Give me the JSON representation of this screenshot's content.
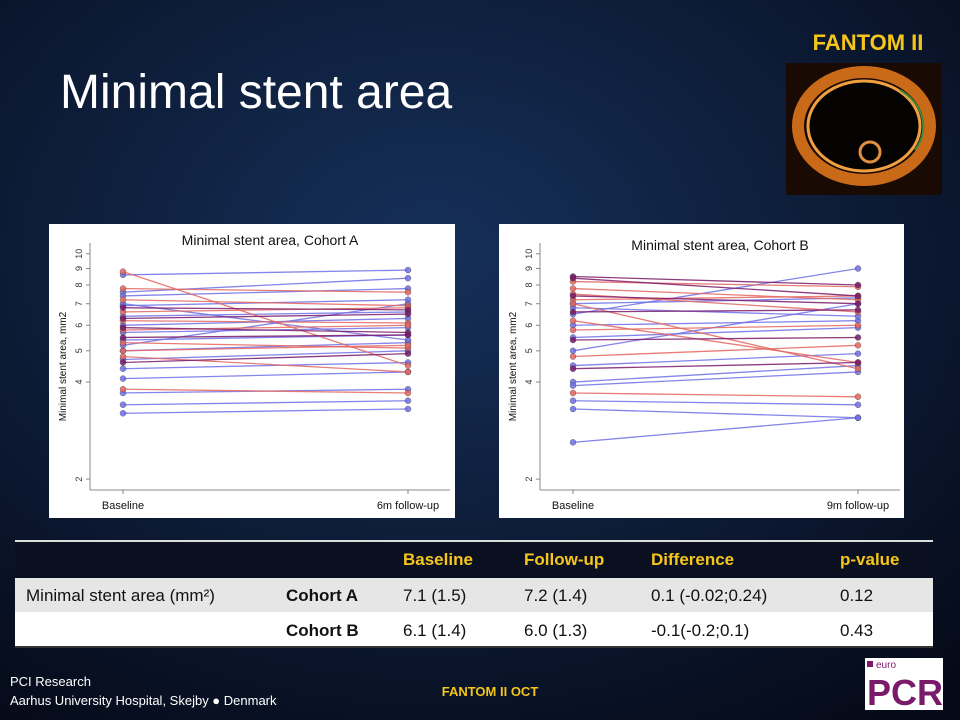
{
  "title": "Minimal stent area",
  "badge": "FANTOM II",
  "chart_data": [
    {
      "type": "line",
      "title": "Minimal stent area, Cohort A",
      "y_label": "Minimal stent area, mm2",
      "categories": [
        "Baseline",
        "6m  follow-up"
      ],
      "log_y": true,
      "ylim": [
        1.85,
        10.8
      ],
      "yticks": [
        2,
        4,
        5,
        6,
        7,
        8,
        9,
        10
      ],
      "series": [
        {
          "color": "#6f6fe6",
          "values": [
            8.6,
            8.9
          ]
        },
        {
          "color": "#6f6fe6",
          "values": [
            7.6,
            8.4
          ]
        },
        {
          "color": "#6f6fe6",
          "values": [
            7.4,
            7.8
          ]
        },
        {
          "color": "#6f6fe6",
          "values": [
            6.9,
            7.2
          ]
        },
        {
          "color": "#6f6fe6",
          "values": [
            6.4,
            6.6
          ]
        },
        {
          "color": "#6f6fe6",
          "values": [
            6.0,
            6.3
          ]
        },
        {
          "color": "#6f6fe6",
          "values": [
            5.7,
            5.9
          ]
        },
        {
          "color": "#6f6fe6",
          "values": [
            5.4,
            5.6
          ]
        },
        {
          "color": "#6f6fe6",
          "values": [
            5.0,
            5.3
          ]
        },
        {
          "color": "#6f6fe6",
          "values": [
            4.7,
            5.0
          ]
        },
        {
          "color": "#6f6fe6",
          "values": [
            4.4,
            4.6
          ]
        },
        {
          "color": "#6f6fe6",
          "values": [
            4.1,
            4.3
          ]
        },
        {
          "color": "#6f6fe6",
          "values": [
            3.7,
            3.8
          ]
        },
        {
          "color": "#6f6fe6",
          "values": [
            3.4,
            3.5
          ]
        },
        {
          "color": "#6f6fe6",
          "values": [
            3.2,
            3.3
          ]
        },
        {
          "color": "#6f6fe6",
          "values": [
            7.0,
            5.4
          ]
        },
        {
          "color": "#6f6fe6",
          "values": [
            5.2,
            7.0
          ]
        },
        {
          "color": "#e4665f",
          "values": [
            8.8,
            4.5
          ]
        },
        {
          "color": "#e4665f",
          "values": [
            7.8,
            7.6
          ]
        },
        {
          "color": "#e4665f",
          "values": [
            7.2,
            6.9
          ]
        },
        {
          "color": "#e4665f",
          "values": [
            6.6,
            6.8
          ]
        },
        {
          "color": "#e4665f",
          "values": [
            6.2,
            6.1
          ]
        },
        {
          "color": "#e4665f",
          "values": [
            5.8,
            6.0
          ]
        },
        {
          "color": "#e4665f",
          "values": [
            5.3,
            5.1
          ]
        },
        {
          "color": "#e4665f",
          "values": [
            5.0,
            5.2
          ]
        },
        {
          "color": "#e4665f",
          "values": [
            4.8,
            4.3
          ]
        },
        {
          "color": "#e4665f",
          "values": [
            3.8,
            3.7
          ]
        },
        {
          "color": "#7a1a6a",
          "values": [
            6.8,
            6.7
          ]
        },
        {
          "color": "#7a1a6a",
          "values": [
            6.3,
            6.5
          ]
        },
        {
          "color": "#7a1a6a",
          "values": [
            5.9,
            5.7
          ]
        },
        {
          "color": "#7a1a6a",
          "values": [
            5.5,
            5.6
          ]
        },
        {
          "color": "#7a1a6a",
          "values": [
            4.6,
            4.9
          ]
        }
      ]
    },
    {
      "type": "line",
      "title": "Minimal stent area, Cohort B",
      "y_label": "Minimal stent area, mm2",
      "categories": [
        "Baseline",
        "9m follow-up"
      ],
      "log_y": true,
      "ylim": [
        1.85,
        10.8
      ],
      "yticks": [
        2,
        4,
        5,
        6,
        7,
        8,
        9,
        10
      ],
      "series": [
        {
          "color": "#6f6fe6",
          "values": [
            6.5,
            9.0
          ]
        },
        {
          "color": "#6f6fe6",
          "values": [
            5.0,
            7.0
          ]
        },
        {
          "color": "#6f6fe6",
          "values": [
            4.0,
            4.5
          ]
        },
        {
          "color": "#6f6fe6",
          "values": [
            3.9,
            4.3
          ]
        },
        {
          "color": "#6f6fe6",
          "values": [
            3.5,
            3.4
          ]
        },
        {
          "color": "#6f6fe6",
          "values": [
            3.3,
            3.1
          ]
        },
        {
          "color": "#6f6fe6",
          "values": [
            2.6,
            3.1
          ]
        },
        {
          "color": "#6f6fe6",
          "values": [
            6.0,
            6.2
          ]
        },
        {
          "color": "#6f6fe6",
          "values": [
            5.5,
            5.9
          ]
        },
        {
          "color": "#6f6fe6",
          "values": [
            4.5,
            4.9
          ]
        },
        {
          "color": "#6f6fe6",
          "values": [
            7.0,
            7.3
          ]
        },
        {
          "color": "#6f6fe6",
          "values": [
            6.8,
            6.4
          ]
        },
        {
          "color": "#e4665f",
          "values": [
            8.2,
            7.9
          ]
        },
        {
          "color": "#e4665f",
          "values": [
            7.8,
            7.2
          ]
        },
        {
          "color": "#e4665f",
          "values": [
            7.5,
            6.6
          ]
        },
        {
          "color": "#e4665f",
          "values": [
            7.2,
            7.4
          ]
        },
        {
          "color": "#e4665f",
          "values": [
            6.2,
            4.6
          ]
        },
        {
          "color": "#e4665f",
          "values": [
            5.8,
            6.0
          ]
        },
        {
          "color": "#e4665f",
          "values": [
            4.8,
            5.2
          ]
        },
        {
          "color": "#e4665f",
          "values": [
            3.7,
            3.6
          ]
        },
        {
          "color": "#e4665f",
          "values": [
            7.0,
            4.4
          ]
        },
        {
          "color": "#7a1a6a",
          "values": [
            8.5,
            8.0
          ]
        },
        {
          "color": "#7a1a6a",
          "values": [
            7.4,
            7.0
          ]
        },
        {
          "color": "#7a1a6a",
          "values": [
            6.6,
            6.7
          ]
        },
        {
          "color": "#7a1a6a",
          "values": [
            5.4,
            5.5
          ]
        },
        {
          "color": "#7a1a6a",
          "values": [
            4.4,
            4.6
          ]
        },
        {
          "color": "#7a1a6a",
          "values": [
            8.4,
            7.4
          ]
        }
      ]
    }
  ],
  "table": {
    "header": [
      "Baseline",
      "Follow-up",
      "Difference",
      "p-value"
    ],
    "rows": [
      {
        "label": "Minimal stent area (mm²)",
        "cohort": "Cohort A",
        "cells": [
          "7.1 (1.5)",
          "7.2 (1.4)",
          "0.1 (-0.02;0.24)",
          "0.12"
        ]
      },
      {
        "cohort": "Cohort B",
        "cells": [
          "6.1 (1.4)",
          "6.0 (1.3)",
          "-0.1(-0.2;0.1)",
          "0.43"
        ]
      }
    ]
  },
  "footer": {
    "org": "PCI Research",
    "address": "Aarhus University Hospital, Skejby ● Denmark",
    "center": "FANTOM II OCT"
  },
  "logo": {
    "small": "euro",
    "big": "PCR"
  }
}
